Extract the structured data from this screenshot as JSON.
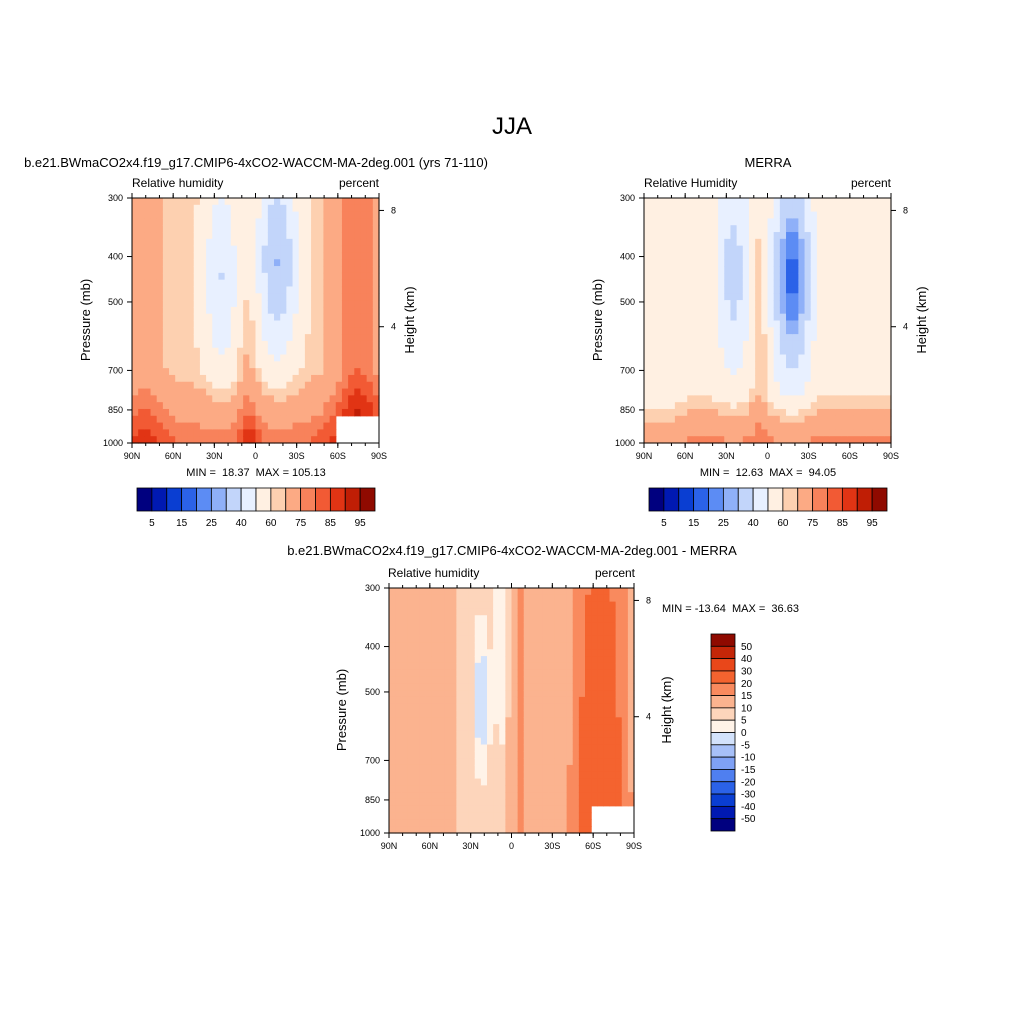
{
  "figure_title": "JJA",
  "chart_data": [
    {
      "type": "heatmap",
      "title": "b.e21.BWmaCO2x4.f19_g17.CMIP6-4xCO2-WACCM-MA-2deg.001 (yrs 71-110)",
      "left_label": "Relative humidity",
      "right_label": "percent",
      "ylabel": "Pressure (mb)",
      "y2label": "Height (km)",
      "x_ticks": [
        "90N",
        "60N",
        "30N",
        "0",
        "30S",
        "60S",
        "90S"
      ],
      "y_ticks": [
        "300",
        "400",
        "500",
        "700",
        "850",
        "1000"
      ],
      "y2_ticks": [
        "8",
        "4"
      ],
      "stats": "MIN =  18.37  MAX = 105.13",
      "min": 18.37,
      "max": 105.13,
      "colorbar_ticks": [
        "5",
        "15",
        "25",
        "40",
        "60",
        "75",
        "85",
        "95"
      ]
    },
    {
      "type": "heatmap",
      "title": "MERRA",
      "left_label": "Relative Humidity",
      "right_label": "percent",
      "ylabel": "Pressure (mb)",
      "y2label": "Height (km)",
      "x_ticks": [
        "90N",
        "60N",
        "30N",
        "0",
        "30S",
        "60S",
        "90S"
      ],
      "y_ticks": [
        "300",
        "400",
        "500",
        "700",
        "850",
        "1000"
      ],
      "y2_ticks": [
        "8",
        "4"
      ],
      "stats": "MIN =  12.63  MAX =  94.05",
      "min": 12.63,
      "max": 94.05,
      "colorbar_ticks": [
        "5",
        "15",
        "25",
        "40",
        "60",
        "75",
        "85",
        "95"
      ]
    },
    {
      "type": "heatmap",
      "title": "b.e21.BWmaCO2x4.f19_g17.CMIP6-4xCO2-WACCM-MA-2deg.001 - MERRA",
      "left_label": "Relative humidity",
      "right_label": "percent",
      "ylabel": "Pressure (mb)",
      "y2label": "Height (km)",
      "x_ticks": [
        "90N",
        "60N",
        "30N",
        "0",
        "30S",
        "60S",
        "90S"
      ],
      "y_ticks": [
        "300",
        "400",
        "500",
        "700",
        "850",
        "1000"
      ],
      "y2_ticks": [
        "8",
        "4"
      ],
      "stats": "MIN = -13.64  MAX =  36.63",
      "min": -13.64,
      "max": 36.63,
      "colorbar_ticks": [
        "50",
        "40",
        "30",
        "20",
        "15",
        "10",
        "5",
        "0",
        "-5",
        "-10",
        "-15",
        "-20",
        "-30",
        "-40",
        "-50"
      ]
    }
  ],
  "colors": {
    "abs_palette": [
      "#00007f",
      "#0019b2",
      "#0a3ed2",
      "#2b62e8",
      "#5c8cf4",
      "#8fb0f8",
      "#c2d5fa",
      "#e8f0ff",
      "#fff0e2",
      "#fdd0b0",
      "#fcaa84",
      "#f8825b",
      "#f25a34",
      "#e13414",
      "#c01e05",
      "#8f0a00"
    ],
    "diff_palette": [
      "#00007f",
      "#0019b2",
      "#0a3ed2",
      "#2b62e8",
      "#4f7ff0",
      "#7fa1f5",
      "#a7c0f8",
      "#d3e2fb",
      "#fff3e8",
      "#fdd5bb",
      "#fbb38f",
      "#f98a5e",
      "#f4632f",
      "#e9471a",
      "#c42608",
      "#8f0a00"
    ]
  }
}
